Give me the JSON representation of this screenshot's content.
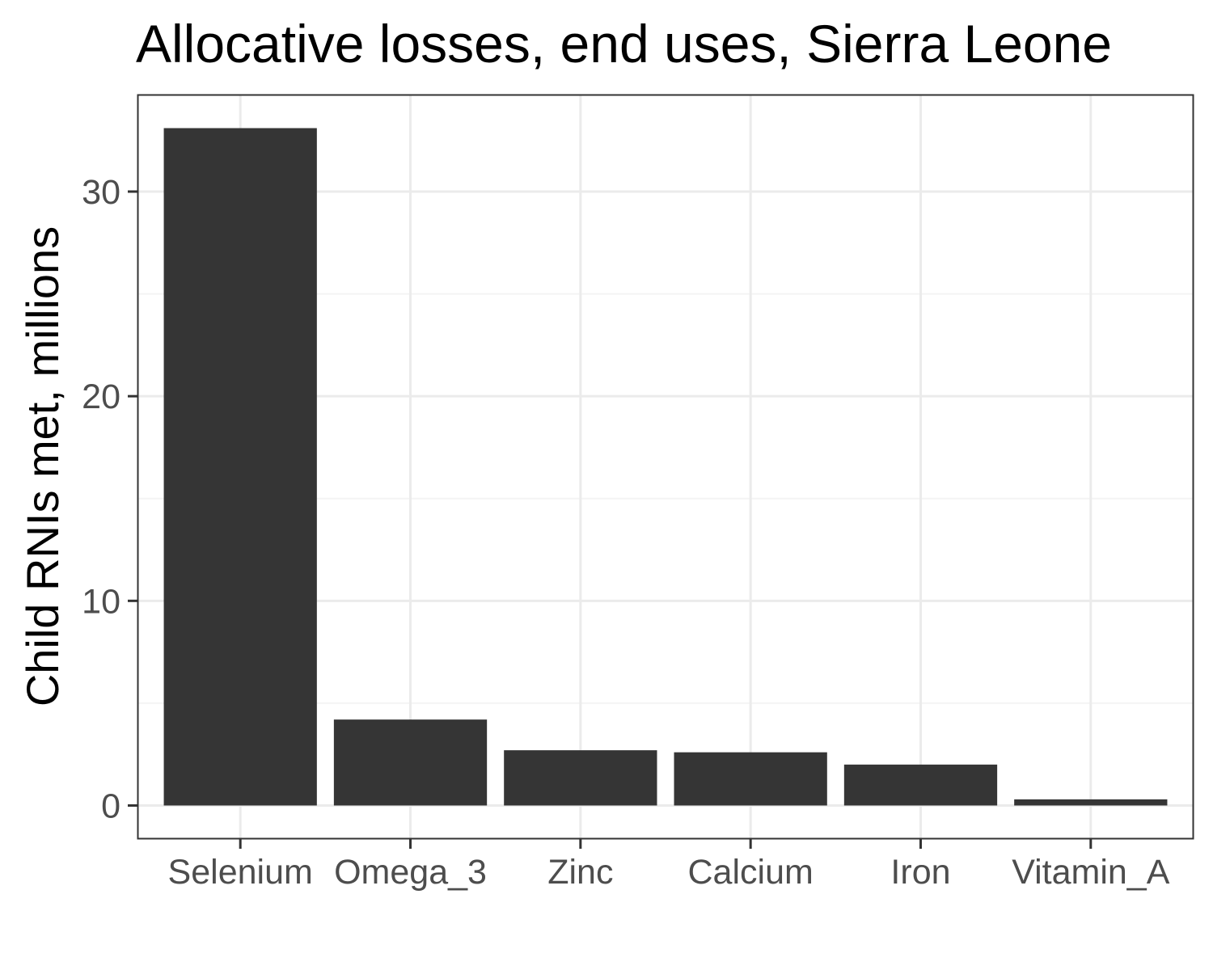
{
  "chart_data": {
    "type": "bar",
    "title": "Allocative losses, end uses, Sierra Leone",
    "xlabel": "",
    "ylabel": "Child RNIs met, millions",
    "categories": [
      "Selenium",
      "Omega_3",
      "Zinc",
      "Calcium",
      "Iron",
      "Vitamin_A"
    ],
    "values": [
      33.1,
      4.2,
      2.7,
      2.6,
      2.0,
      0.3
    ],
    "ylim": [
      -1.6,
      34.7
    ],
    "yticks": [
      0,
      10,
      20,
      30
    ],
    "ytick_labels": [
      "0",
      "10",
      "20",
      "30"
    ],
    "grid": true,
    "legend": "none",
    "colors": {
      "bar": "#353535",
      "grid_major": "#ebebeb",
      "grid_minor": "#f4f4f4",
      "panel_border": "#333333",
      "tick_label": "#4d4d4d",
      "text": "#000000",
      "background": "#ffffff"
    }
  }
}
